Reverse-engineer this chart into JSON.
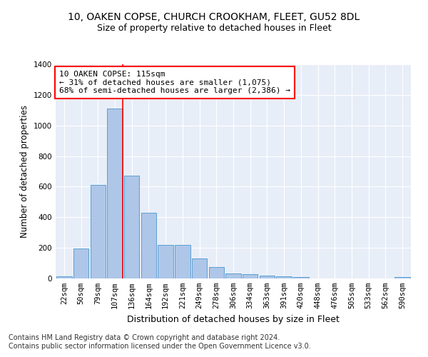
{
  "title1": "10, OAKEN COPSE, CHURCH CROOKHAM, FLEET, GU52 8DL",
  "title2": "Size of property relative to detached houses in Fleet",
  "xlabel": "Distribution of detached houses by size in Fleet",
  "ylabel": "Number of detached properties",
  "categories": [
    "22sqm",
    "50sqm",
    "79sqm",
    "107sqm",
    "136sqm",
    "164sqm",
    "192sqm",
    "221sqm",
    "249sqm",
    "278sqm",
    "306sqm",
    "334sqm",
    "363sqm",
    "391sqm",
    "420sqm",
    "448sqm",
    "476sqm",
    "505sqm",
    "533sqm",
    "562sqm",
    "590sqm"
  ],
  "values": [
    15,
    195,
    610,
    1110,
    670,
    430,
    220,
    220,
    130,
    75,
    35,
    30,
    20,
    12,
    10,
    0,
    0,
    0,
    0,
    0,
    10
  ],
  "bar_color": "#aec6e8",
  "bar_edge_color": "#5a9fd4",
  "annotation_text": "10 OAKEN COPSE: 115sqm\n← 31% of detached houses are smaller (1,075)\n68% of semi-detached houses are larger (2,386) →",
  "annotation_box_color": "white",
  "annotation_box_edge_color": "red",
  "vline_color": "red",
  "vline_x": 3.45,
  "ylim": [
    0,
    1400
  ],
  "yticks": [
    0,
    200,
    400,
    600,
    800,
    1000,
    1200,
    1400
  ],
  "bg_color": "#e8eef8",
  "footer1": "Contains HM Land Registry data © Crown copyright and database right 2024.",
  "footer2": "Contains public sector information licensed under the Open Government Licence v3.0.",
  "title1_fontsize": 10,
  "title2_fontsize": 9,
  "xlabel_fontsize": 9,
  "ylabel_fontsize": 8.5,
  "tick_fontsize": 7.5,
  "annotation_fontsize": 8,
  "footer_fontsize": 7
}
